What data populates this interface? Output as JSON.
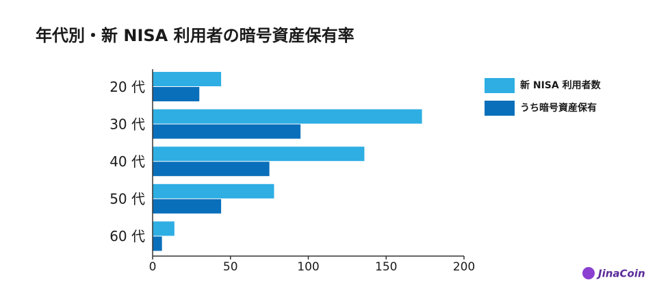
{
  "chart_data": {
    "type": "hbar",
    "title": "年代別・新 NISA 利用者の暗号資産保有率",
    "categories": [
      "20 代",
      "30 代",
      "40 代",
      "50 代",
      "60 代"
    ],
    "series": [
      {
        "name": "新 NISA 利用者数",
        "color": "#2eaee3",
        "values": [
          44,
          173,
          136,
          78,
          14
        ]
      },
      {
        "name": "うち暗号資産保有",
        "color": "#0a6fba",
        "values": [
          30,
          95,
          75,
          44,
          6
        ]
      }
    ],
    "xlim": [
      0,
      200
    ],
    "xticks": [
      0,
      50,
      100,
      150,
      200
    ],
    "legend": "right",
    "brand": "JinaCoin"
  }
}
